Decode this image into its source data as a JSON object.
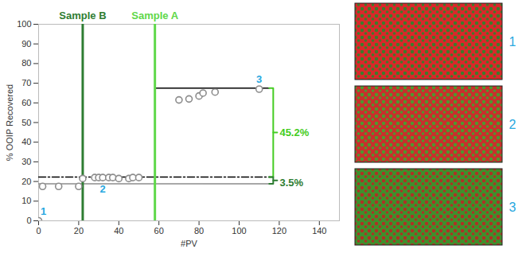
{
  "chart_data": {
    "type": "scatter",
    "x_label": "#PV",
    "y_label": "% OOIP Recovered",
    "x": [
      0,
      2,
      10,
      20,
      22,
      28,
      30,
      32,
      35,
      37,
      40,
      45,
      47,
      50,
      70,
      75,
      80,
      82,
      88,
      110
    ],
    "values": [
      0,
      17.5,
      17.5,
      17.5,
      21.5,
      22,
      22,
      22,
      22,
      22,
      21.5,
      21.5,
      22,
      22,
      61.5,
      62,
      63.5,
      65,
      65.5,
      67
    ],
    "color": "#8c8c8c",
    "marker": "circle",
    "xlim": [
      0,
      150
    ],
    "xticks": [
      0,
      20,
      40,
      60,
      80,
      100,
      120,
      140
    ],
    "ylim": [
      0,
      100
    ],
    "yticks": [
      0,
      10,
      20,
      30,
      40,
      50,
      60,
      70,
      80,
      90,
      100
    ],
    "grid": false,
    "vlines": [
      {
        "x": 22,
        "label": "Sample B",
        "color": "#2e7d32"
      },
      {
        "x": 58,
        "label": "Sample A",
        "color": "#5fd84a"
      }
    ],
    "hlines": [
      {
        "y": 67.5,
        "x": [
          58,
          115
        ],
        "color": "#000000",
        "line_style": "solid"
      },
      {
        "y": 22.3,
        "x": [
          0,
          115
        ],
        "color": "#000000",
        "line_style": "dashdot"
      },
      {
        "y": 18.8,
        "x": [
          0,
          115
        ],
        "color": "#8c8c8c",
        "line_style": "solid"
      }
    ],
    "brackets": [
      {
        "from": 22.3,
        "to": 67.5,
        "x": 115,
        "text": "45.2%",
        "color": "#44cc22"
      },
      {
        "from": 18.8,
        "to": 22.3,
        "x": 115,
        "text": "3.5%",
        "color": "#2e7d32"
      }
    ],
    "point_labels": [
      {
        "index": 0,
        "text": "1",
        "position": "above",
        "color": "#29a8e0"
      },
      {
        "index": 7,
        "text": "2",
        "position": "below",
        "color": "#29a8e0"
      },
      {
        "index": 19,
        "text": "3",
        "position": "above",
        "color": "#29a8e0"
      }
    ]
  },
  "images": {
    "labels": [
      "1",
      "2",
      "3"
    ],
    "color": "#29a8e0"
  }
}
